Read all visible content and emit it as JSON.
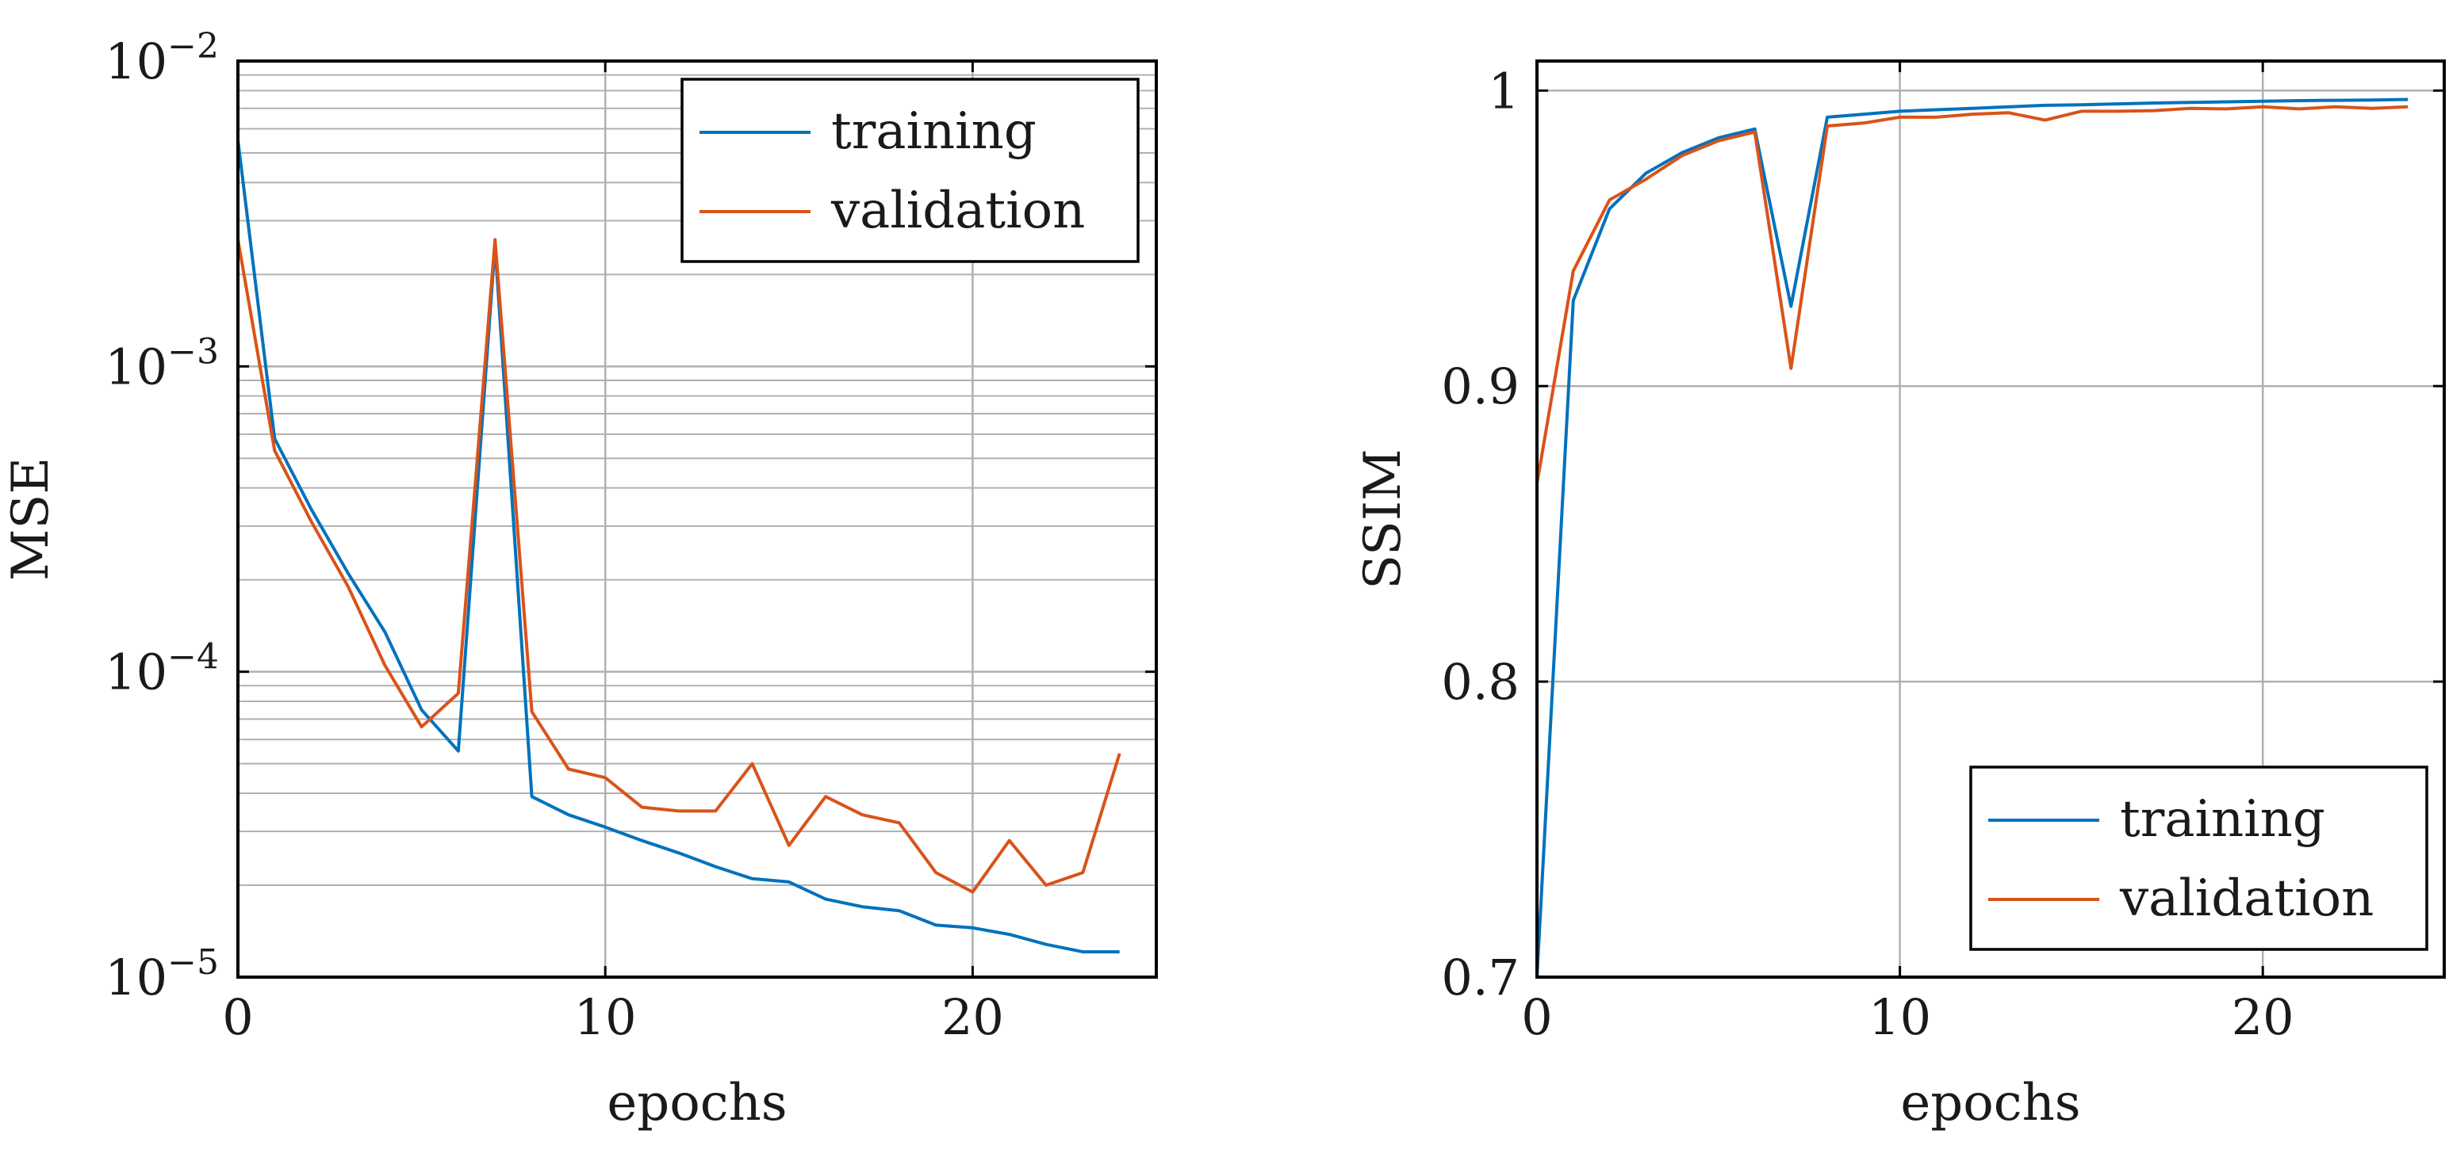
{
  "colors": {
    "training": "#0072bd",
    "validation": "#d95319",
    "grid": "#b0b0b0",
    "axis": "#000000"
  },
  "chart_data": [
    {
      "type": "line",
      "title": "",
      "xlabel": "epochs",
      "ylabel": "MSE",
      "yscale": "log",
      "xlim": [
        0,
        25
      ],
      "ylim": [
        1e-05,
        0.01
      ],
      "xticks": [
        0,
        10,
        20
      ],
      "xtick_labels": [
        "0",
        "10",
        "20"
      ],
      "yticks": [
        1e-05,
        0.0001,
        0.001,
        0.01
      ],
      "ytick_labels": [
        {
          "base": "10",
          "exp": "−5"
        },
        {
          "base": "10",
          "exp": "−4"
        },
        {
          "base": "10",
          "exp": "−3"
        },
        {
          "base": "10",
          "exp": "−2"
        }
      ],
      "grid": true,
      "legend_position": "top-right",
      "x": [
        0,
        1,
        2,
        3,
        4,
        5,
        6,
        7,
        8,
        9,
        10,
        11,
        12,
        13,
        14,
        15,
        16,
        17,
        18,
        19,
        20,
        21,
        22,
        23,
        24
      ],
      "series": [
        {
          "name": "training",
          "color_key": "training",
          "values": [
            0.0055,
            0.00058,
            0.00034,
            0.00021,
            0.000135,
            7.5e-05,
            5.5e-05,
            0.0025,
            3.9e-05,
            3.4e-05,
            3.1e-05,
            2.8e-05,
            2.55e-05,
            2.3e-05,
            2.1e-05,
            2.05e-05,
            1.8e-05,
            1.7e-05,
            1.65e-05,
            1.48e-05,
            1.45e-05,
            1.38e-05,
            1.28e-05,
            1.21e-05,
            1.21e-05
          ]
        },
        {
          "name": "validation",
          "color_key": "validation",
          "values": [
            0.0026,
            0.00053,
            0.00031,
            0.00019,
            0.000105,
            6.6e-05,
            8.5e-05,
            0.0026,
            7.4e-05,
            4.8e-05,
            4.5e-05,
            3.6e-05,
            3.5e-05,
            3.5e-05,
            5e-05,
            2.7e-05,
            3.9e-05,
            3.4e-05,
            3.2e-05,
            2.2e-05,
            1.9e-05,
            2.8e-05,
            2e-05,
            2.2e-05,
            5.4e-05
          ]
        }
      ]
    },
    {
      "type": "line",
      "title": "",
      "xlabel": "epochs",
      "ylabel": "SSIM",
      "yscale": "linear",
      "xlim": [
        0,
        25
      ],
      "ylim": [
        0.7,
        1.01
      ],
      "xticks": [
        0,
        10,
        20
      ],
      "xtick_labels": [
        "0",
        "10",
        "20"
      ],
      "yticks": [
        0.7,
        0.8,
        0.9,
        1.0
      ],
      "ytick_labels": [
        "0.7",
        "0.8",
        "0.9",
        "1"
      ],
      "grid": true,
      "legend_position": "bottom-right",
      "x": [
        0,
        1,
        2,
        3,
        4,
        5,
        6,
        7,
        8,
        9,
        10,
        11,
        12,
        13,
        14,
        15,
        16,
        17,
        18,
        19,
        20,
        21,
        22,
        23,
        24
      ],
      "series": [
        {
          "name": "training",
          "color_key": "training",
          "values": [
            0.7,
            0.929,
            0.96,
            0.972,
            0.979,
            0.984,
            0.987,
            0.927,
            0.991,
            0.992,
            0.993,
            0.9935,
            0.994,
            0.9945,
            0.995,
            0.9952,
            0.9955,
            0.9958,
            0.996,
            0.9962,
            0.9964,
            0.9966,
            0.9967,
            0.9968,
            0.997
          ]
        },
        {
          "name": "validation",
          "color_key": "validation",
          "values": [
            0.867,
            0.939,
            0.963,
            0.97,
            0.978,
            0.983,
            0.986,
            0.906,
            0.988,
            0.989,
            0.991,
            0.991,
            0.992,
            0.9925,
            0.99,
            0.993,
            0.993,
            0.9932,
            0.994,
            0.9938,
            0.9945,
            0.9938,
            0.9945,
            0.994,
            0.9945
          ]
        }
      ]
    }
  ]
}
